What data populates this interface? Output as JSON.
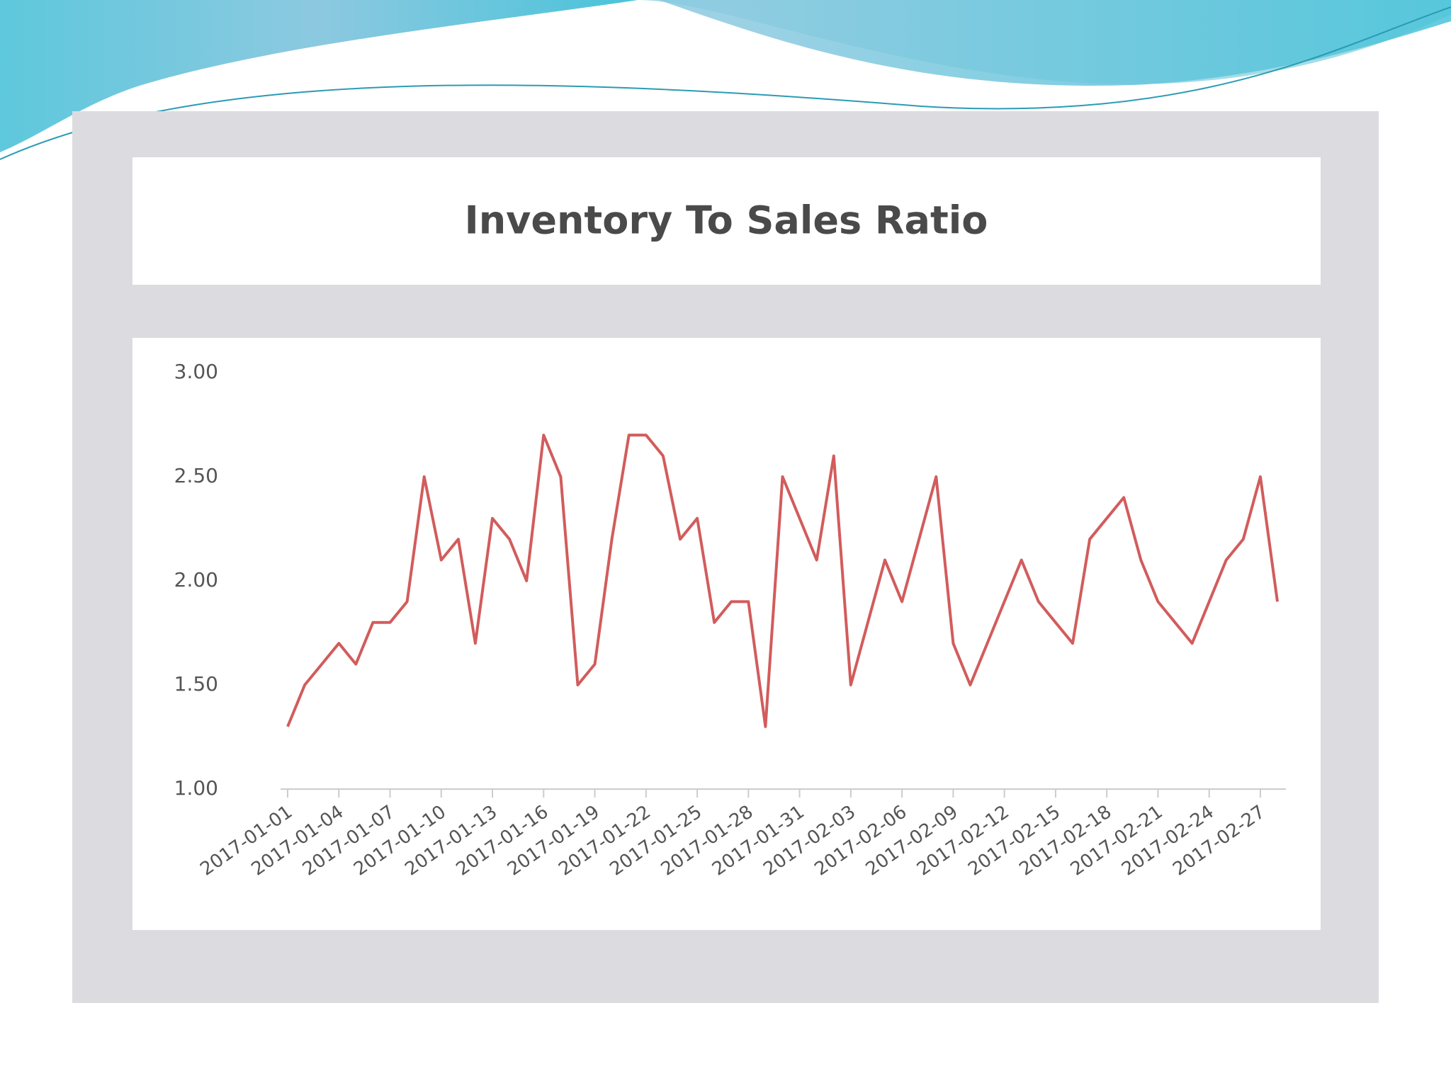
{
  "chart_data": {
    "type": "line",
    "title": "Inventory To Sales Ratio",
    "categories": [
      "2017-01-01",
      null,
      null,
      "2017-01-04",
      null,
      null,
      "2017-01-07",
      null,
      null,
      "2017-01-10",
      null,
      null,
      "2017-01-13",
      null,
      null,
      "2017-01-16",
      null,
      null,
      "2017-01-19",
      null,
      null,
      "2017-01-22",
      null,
      null,
      "2017-01-25",
      null,
      null,
      "2017-01-28",
      null,
      null,
      "2017-01-31",
      null,
      null,
      "2017-02-03",
      null,
      null,
      "2017-02-06",
      null,
      null,
      "2017-02-09",
      null,
      null,
      "2017-02-12",
      null,
      null,
      "2017-02-15",
      null,
      null,
      "2017-02-18",
      null,
      null,
      "2017-02-21",
      null,
      null,
      "2017-02-24",
      null,
      null,
      "2017-02-27",
      null
    ],
    "values": [
      1.3,
      1.5,
      1.6,
      1.7,
      1.6,
      1.8,
      1.8,
      1.9,
      2.5,
      2.1,
      2.2,
      1.7,
      2.3,
      2.2,
      2.0,
      2.7,
      2.5,
      1.5,
      1.6,
      2.2,
      2.7,
      2.7,
      2.6,
      2.2,
      2.3,
      1.8,
      1.9,
      1.9,
      1.3,
      2.5,
      2.3,
      2.1,
      2.6,
      1.5,
      1.8,
      2.1,
      1.9,
      2.2,
      2.5,
      1.7,
      1.5,
      1.7,
      1.9,
      2.1,
      1.9,
      1.8,
      1.7,
      2.2,
      2.3,
      2.4,
      2.1,
      1.9,
      1.8,
      1.7,
      1.9,
      2.1,
      2.2,
      2.5,
      1.9
    ],
    "color": "#d25c5c",
    "ylim": [
      1,
      3
    ],
    "yticks": [
      {
        "value": 1,
        "label": "1.00"
      },
      {
        "value": 1.5,
        "label": "1.50"
      },
      {
        "value": 2,
        "label": "2.00"
      },
      {
        "value": 2.5,
        "label": "2.50"
      },
      {
        "value": 3,
        "label": "3.00"
      }
    ],
    "grid": false
  }
}
